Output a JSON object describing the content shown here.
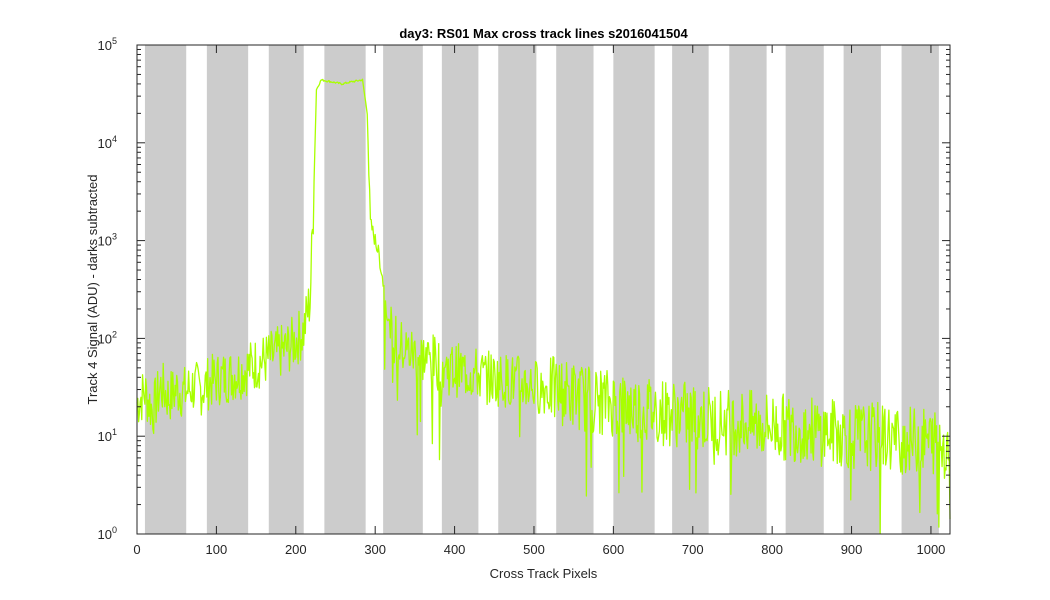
{
  "chart_data": {
    "type": "line",
    "title": "day3: RS01  Max cross track lines  s2016041504",
    "xlabel": "Cross Track Pixels",
    "ylabel": "Track 4 Signal (ADU) - darks subtracted",
    "xlim": [
      0,
      1024
    ],
    "ylim": [
      1,
      100000
    ],
    "yscale": "log",
    "x_ticks": [
      0,
      100,
      200,
      300,
      400,
      500,
      600,
      700,
      800,
      900,
      1000
    ],
    "y_ticks": [
      {
        "value": 1,
        "base": "10",
        "exp": "0"
      },
      {
        "value": 10,
        "base": "10",
        "exp": "1"
      },
      {
        "value": 100,
        "base": "10",
        "exp": "2"
      },
      {
        "value": 1000,
        "base": "10",
        "exp": "3"
      },
      {
        "value": 10000,
        "base": "10",
        "exp": "4"
      },
      {
        "value": 100000,
        "base": "10",
        "exp": "5"
      }
    ],
    "grid": false,
    "legend": "none",
    "shaded_bands": [
      [
        10,
        62
      ],
      [
        88,
        140
      ],
      [
        166,
        210
      ],
      [
        236,
        288
      ],
      [
        310,
        360
      ],
      [
        384,
        430
      ],
      [
        455,
        503
      ],
      [
        528,
        575
      ],
      [
        600,
        652
      ],
      [
        674,
        720
      ],
      [
        746,
        793
      ],
      [
        817,
        865
      ],
      [
        890,
        937
      ],
      [
        963,
        1010
      ]
    ],
    "series": [
      {
        "color": "#a8ff00",
        "points": [
          [
            0,
            22
          ],
          [
            10,
            28
          ],
          [
            20,
            18
          ],
          [
            30,
            32
          ],
          [
            40,
            25
          ],
          [
            50,
            30
          ],
          [
            60,
            28
          ],
          [
            70,
            32
          ],
          [
            80,
            30
          ],
          [
            90,
            35
          ],
          [
            100,
            38
          ],
          [
            110,
            40
          ],
          [
            120,
            42
          ],
          [
            130,
            45
          ],
          [
            140,
            50
          ],
          [
            150,
            55
          ],
          [
            160,
            60
          ],
          [
            170,
            65
          ],
          [
            180,
            72
          ],
          [
            190,
            80
          ],
          [
            200,
            95
          ],
          [
            210,
            120
          ],
          [
            218,
            250
          ],
          [
            222,
            2000
          ],
          [
            226,
            35000
          ],
          [
            232,
            44000
          ],
          [
            245,
            42000
          ],
          [
            258,
            40000
          ],
          [
            270,
            42000
          ],
          [
            284,
            44000
          ],
          [
            290,
            20000
          ],
          [
            294,
            1500
          ],
          [
            300,
            1000
          ],
          [
            305,
            700
          ],
          [
            310,
            380
          ],
          [
            315,
            180
          ],
          [
            320,
            110
          ],
          [
            330,
            85
          ],
          [
            340,
            75
          ],
          [
            350,
            70
          ],
          [
            360,
            65
          ],
          [
            370,
            60
          ],
          [
            380,
            55
          ],
          [
            390,
            50
          ],
          [
            400,
            48
          ],
          [
            420,
            45
          ],
          [
            440,
            40
          ],
          [
            460,
            38
          ],
          [
            480,
            36
          ],
          [
            500,
            33
          ],
          [
            520,
            30
          ],
          [
            540,
            28
          ],
          [
            560,
            25
          ],
          [
            580,
            23
          ],
          [
            600,
            22
          ],
          [
            620,
            20
          ],
          [
            640,
            19
          ],
          [
            660,
            18
          ],
          [
            680,
            17
          ],
          [
            700,
            16
          ],
          [
            720,
            15
          ],
          [
            740,
            14
          ],
          [
            760,
            14
          ],
          [
            780,
            13
          ],
          [
            800,
            13
          ],
          [
            820,
            12
          ],
          [
            840,
            12
          ],
          [
            860,
            11
          ],
          [
            880,
            11
          ],
          [
            900,
            10
          ],
          [
            920,
            10
          ],
          [
            940,
            10
          ],
          [
            960,
            9
          ],
          [
            980,
            9
          ],
          [
            1000,
            9
          ],
          [
            1024,
            8
          ]
        ]
      }
    ]
  }
}
